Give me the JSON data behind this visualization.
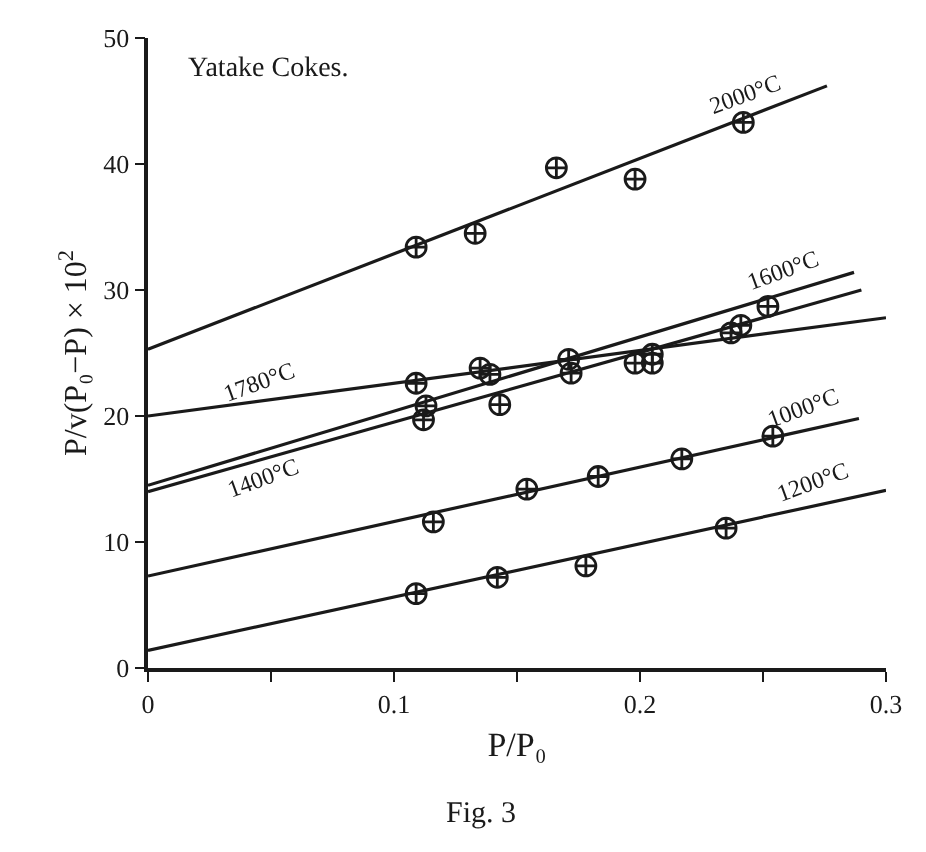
{
  "chart_data": {
    "type": "scatter",
    "xlabel": "P/P₀",
    "ylabel": "P/v(P₀−P) × 10$^{2}$",
    "xlim": [
      0,
      0.3
    ],
    "ylim": [
      0,
      50
    ],
    "xticks": [
      0,
      {
        "value": 0.05,
        "label": null
      },
      0.1,
      {
        "value": 0.15,
        "label": null
      },
      0.2,
      {
        "value": 0.25,
        "label": null
      },
      0.3
    ],
    "yticks": [
      0,
      10,
      20,
      30,
      40,
      50
    ],
    "grid": false,
    "legend": false,
    "series": [
      {
        "marker": "cross",
        "color": "#1a1a1a",
        "x": [
          0.109,
          0.133,
          0.166,
          0.198,
          0.242
        ],
        "values": [
          33.4,
          34.5,
          39.7,
          38.8,
          43.3
        ]
      },
      {
        "marker": "cross",
        "color": "#1a1a1a",
        "x": [
          0.113,
          0.135,
          0.171,
          0.205,
          0.252
        ],
        "values": [
          20.8,
          23.8,
          24.5,
          24.2,
          28.7
        ]
      },
      {
        "marker": "cross",
        "color": "#1a1a1a",
        "x": [
          0.109,
          0.139,
          0.205,
          0.241
        ],
        "values": [
          22.6,
          23.3,
          24.9,
          27.2
        ]
      },
      {
        "marker": "cross",
        "color": "#1a1a1a",
        "x": [
          0.112,
          0.143,
          0.172,
          0.198,
          0.237
        ],
        "values": [
          19.7,
          20.9,
          23.4,
          24.2,
          26.6
        ]
      },
      {
        "marker": "cross",
        "color": "#1a1a1a",
        "x": [
          0.116,
          0.154,
          0.183,
          0.217,
          0.254
        ],
        "values": [
          11.6,
          14.2,
          15.2,
          16.6,
          18.4
        ]
      },
      {
        "marker": "cross",
        "color": "#1a1a1a",
        "x": [
          0.109,
          0.142,
          0.178,
          0.235
        ],
        "values": [
          5.9,
          7.2,
          8.1,
          11.1
        ]
      },
      {
        "type": "line",
        "name": "2000°C",
        "marker": "none",
        "line_style": "solid",
        "color": "#1a1a1a",
        "x": [
          0,
          0.276
        ],
        "values": [
          25.3,
          46.2
        ]
      },
      {
        "type": "line",
        "name": "1600°C",
        "marker": "none",
        "line_style": "solid",
        "color": "#1a1a1a",
        "x": [
          0,
          0.287
        ],
        "values": [
          14.5,
          31.4
        ]
      },
      {
        "type": "line",
        "name": "1780°C",
        "marker": "none",
        "line_style": "solid",
        "color": "#1a1a1a",
        "x": [
          0,
          0.3
        ],
        "values": [
          20,
          27.8
        ]
      },
      {
        "type": "line",
        "name": "1400°C",
        "marker": "none",
        "line_style": "solid",
        "color": "#1a1a1a",
        "x": [
          0,
          0.29
        ],
        "values": [
          14,
          30
        ]
      },
      {
        "type": "line",
        "name": "1000°C",
        "marker": "none",
        "line_style": "solid",
        "color": "#1a1a1a",
        "x": [
          0,
          0.289
        ],
        "values": [
          7.3,
          19.8
        ]
      },
      {
        "type": "line",
        "name": "1200°C",
        "marker": "none",
        "line_style": "solid",
        "color": "#1a1a1a",
        "x": [
          0,
          0.3
        ],
        "values": [
          1.4,
          14.1
        ]
      }
    ],
    "annotations": [
      "Yatake Cokes.",
      "Fig. 3"
    ]
  }
}
